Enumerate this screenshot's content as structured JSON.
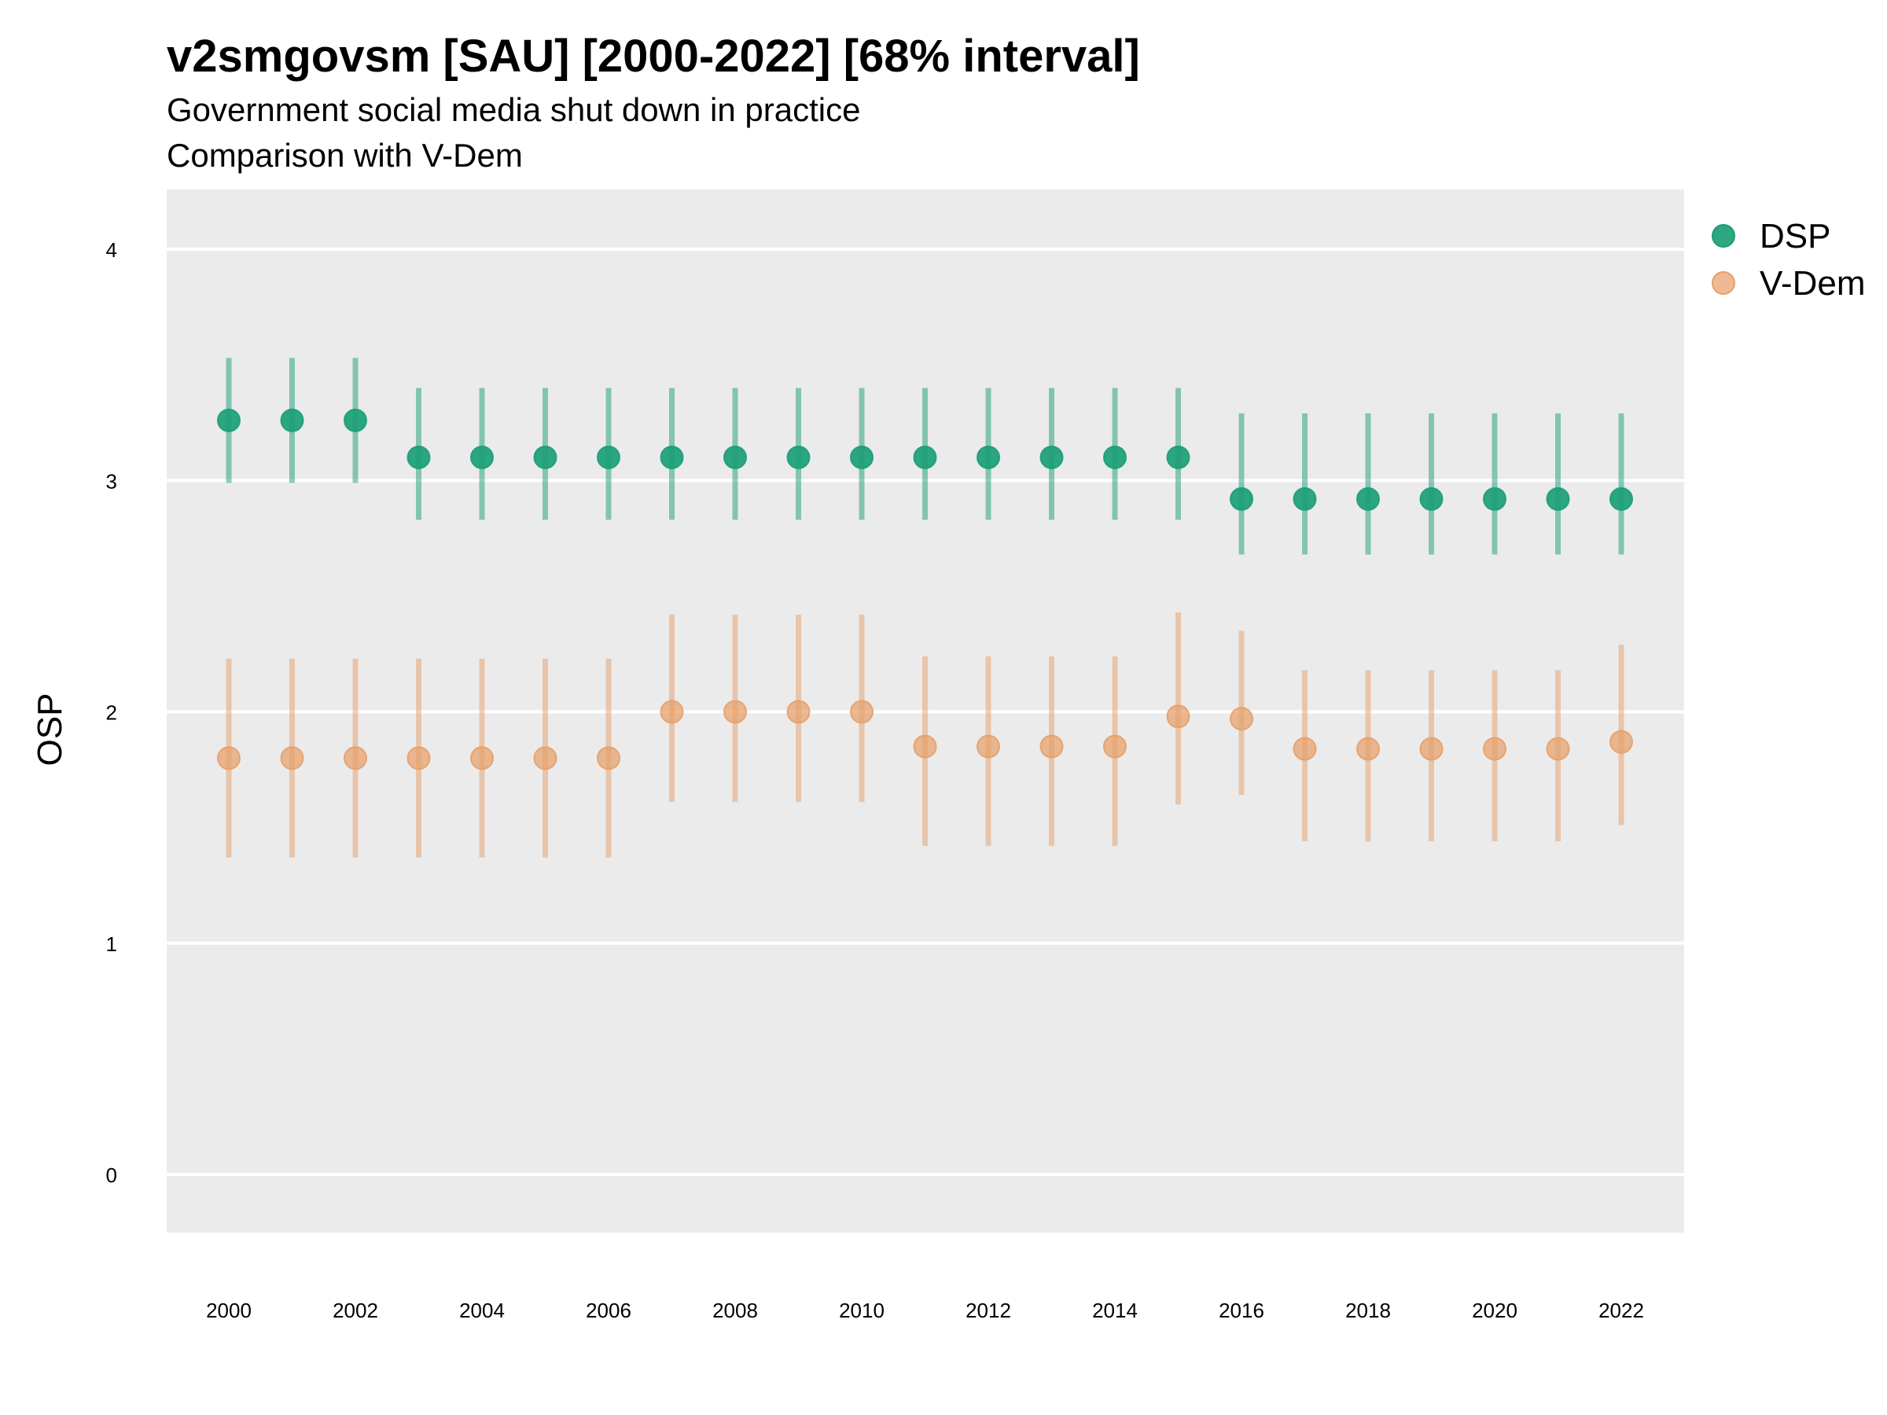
{
  "chart_data": {
    "type": "scatter",
    "title": "v2smgovsm [SAU] [2000-2022] [68% interval]",
    "subtitle": "Government social media shut down in practice",
    "subtitle2": "Comparison with V-Dem",
    "ylabel": "OSP",
    "xlabel": "",
    "ylim": [
      -0.25,
      4.25
    ],
    "y_ticks": [
      "0",
      "1",
      "2",
      "3",
      "4"
    ],
    "x_ticks": [
      "2000",
      "2002",
      "2004",
      "2006",
      "2008",
      "2010",
      "2012",
      "2014",
      "2016",
      "2018",
      "2020",
      "2022"
    ],
    "x": [
      2000,
      2001,
      2002,
      2003,
      2004,
      2005,
      2006,
      2007,
      2008,
      2009,
      2010,
      2011,
      2012,
      2013,
      2014,
      2015,
      2016,
      2017,
      2018,
      2019,
      2020,
      2021,
      2022
    ],
    "grid": true,
    "legend_position": "right",
    "series": [
      {
        "name": "DSP",
        "color": "#1b9e77",
        "values": [
          3.26,
          3.26,
          3.26,
          3.1,
          3.1,
          3.1,
          3.1,
          3.1,
          3.1,
          3.1,
          3.1,
          3.1,
          3.1,
          3.1,
          3.1,
          3.1,
          2.92,
          2.92,
          2.92,
          2.92,
          2.92,
          2.92,
          2.92
        ],
        "lower": [
          2.99,
          2.99,
          2.99,
          2.83,
          2.83,
          2.83,
          2.83,
          2.83,
          2.83,
          2.83,
          2.83,
          2.83,
          2.83,
          2.83,
          2.83,
          2.83,
          2.68,
          2.68,
          2.68,
          2.68,
          2.68,
          2.68,
          2.68
        ],
        "upper": [
          3.53,
          3.53,
          3.53,
          3.4,
          3.4,
          3.4,
          3.4,
          3.4,
          3.4,
          3.4,
          3.4,
          3.4,
          3.4,
          3.4,
          3.4,
          3.4,
          3.29,
          3.29,
          3.29,
          3.29,
          3.29,
          3.29,
          3.29
        ]
      },
      {
        "name": "V-Dem",
        "color": "#e6a06a",
        "values": [
          1.8,
          1.8,
          1.8,
          1.8,
          1.8,
          1.8,
          1.8,
          2.0,
          2.0,
          2.0,
          2.0,
          1.85,
          1.85,
          1.85,
          1.85,
          1.98,
          1.97,
          1.84,
          1.84,
          1.84,
          1.84,
          1.84,
          1.87
        ],
        "lower": [
          1.37,
          1.37,
          1.37,
          1.37,
          1.37,
          1.37,
          1.37,
          1.61,
          1.61,
          1.61,
          1.61,
          1.42,
          1.42,
          1.42,
          1.42,
          1.6,
          1.64,
          1.44,
          1.44,
          1.44,
          1.44,
          1.44,
          1.51
        ],
        "upper": [
          2.23,
          2.23,
          2.23,
          2.23,
          2.23,
          2.23,
          2.23,
          2.42,
          2.42,
          2.42,
          2.42,
          2.24,
          2.24,
          2.24,
          2.24,
          2.43,
          2.35,
          2.18,
          2.18,
          2.18,
          2.18,
          2.18,
          2.29
        ]
      }
    ]
  }
}
